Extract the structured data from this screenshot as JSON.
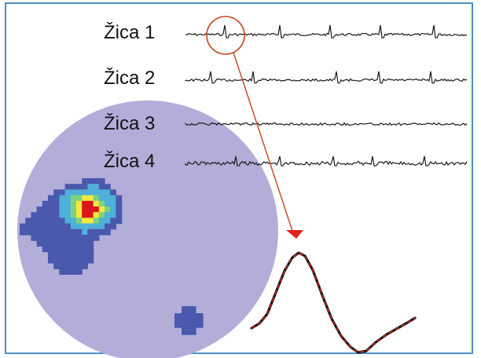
{
  "wires": [
    {
      "label": "Žica 1"
    },
    {
      "label": "Žica 2"
    },
    {
      "label": "Žica 3"
    },
    {
      "label": "Žica 4"
    }
  ],
  "place_field": {
    "description_colors": {
      "background": "#b2aed9",
      "low": "#4a58ad",
      "mid": "#4fb0d8",
      "mid_high": "#7fd27a",
      "high": "#f3e93f",
      "peak": "#d9161b"
    },
    "heatmap_rows": [
      "...........LLLL.........",
      "........LLLLMMLL........",
      "......LLMMMMMMMML.......",
      ".....LLMMGGYYGMMML......",
      "....LLLMMGYRRYGMML......",
      "...LLLLMMGYRRRYGML......",
      "..LLLLLMMGYRRYGMML......",
      ".LLLLLLLMMGYYGMMLL......",
      "LLLLLLLLLMMMMMMLL.......",
      "LLLLLLLLLLLMLLLL........",
      "..LLLLLLLLLLLL..........",
      "...LLLLLLLLLL...........",
      "....LLLLLLLLL...........",
      ".....LLLLLLLL...........",
      ".....LLLLLLLL...........",
      "......LLLLLL............",
      ".......LLLL............."
    ],
    "second_blob_rows": [
      ".LL.",
      "LLLL",
      "LLLL",
      ".LL."
    ]
  },
  "colors": {
    "frame": "#4d8fc6",
    "trace": "#1a1a1a",
    "annotation": "#c8421e",
    "spike_overlay": "#e0261c",
    "spike_base": "#111111"
  }
}
